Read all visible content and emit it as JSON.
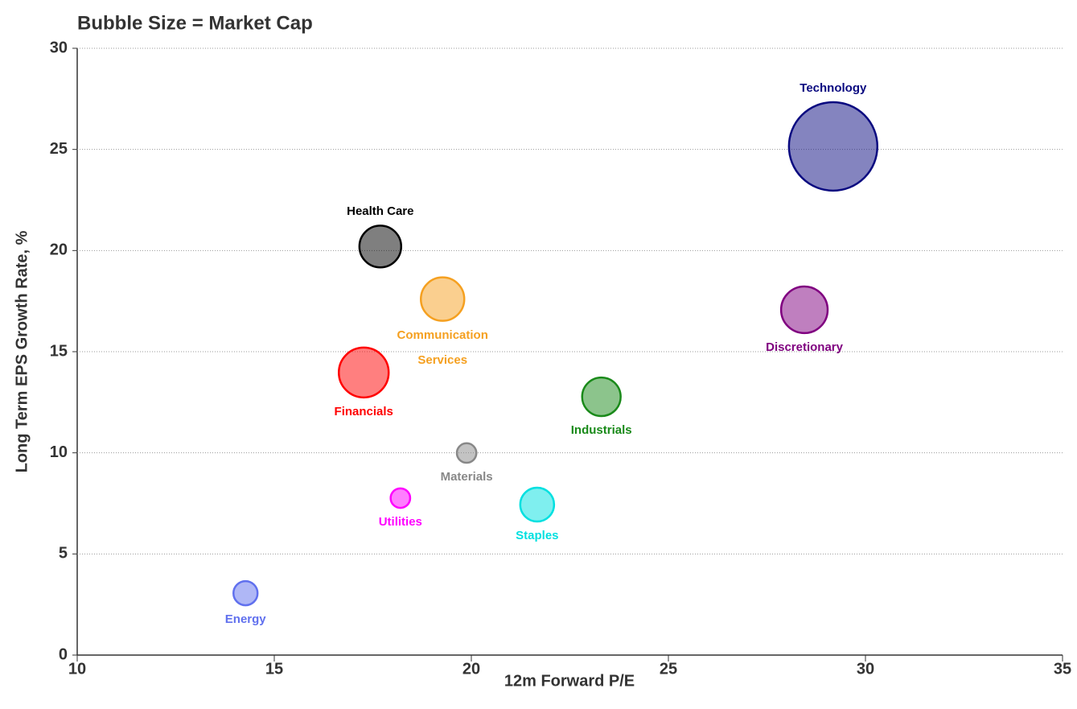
{
  "chart_data": {
    "type": "bubble",
    "title": "Bubble Size = Market Cap",
    "xlabel": "12m Forward P/E",
    "ylabel": "Long Term EPS Growth Rate, %",
    "xlim": [
      10,
      35
    ],
    "xticks": [
      10,
      15,
      20,
      25,
      30,
      35
    ],
    "ylim": [
      0,
      30
    ],
    "yticks": [
      0,
      5,
      10,
      15,
      20,
      25,
      30
    ],
    "grid": true,
    "series": [
      {
        "name": "Technology",
        "color": "#0a0a80",
        "x": [
          29.18
        ],
        "values": [
          25.15
        ],
        "sizes": [
          39
        ]
      },
      {
        "name": "Health Care",
        "color": "#000000",
        "x": [
          17.69
        ],
        "values": [
          20.2
        ],
        "sizes": [
          8.7
        ]
      },
      {
        "name": "Communication Services",
        "color": "#f5a020",
        "x": [
          19.27
        ],
        "values": [
          17.6
        ],
        "sizes": [
          9.4
        ]
      },
      {
        "name": "Financials",
        "color": "#ff0000",
        "x": [
          17.27
        ],
        "values": [
          13.97
        ],
        "sizes": [
          12.4
        ]
      },
      {
        "name": "Discretionary",
        "color": "#800080",
        "x": [
          28.45
        ],
        "values": [
          17.07
        ],
        "sizes": [
          10.8
        ]
      },
      {
        "name": "Industrials",
        "color": "#1a8a1a",
        "x": [
          23.3
        ],
        "values": [
          12.77
        ],
        "sizes": [
          7.4
        ]
      },
      {
        "name": "Materials",
        "color": "#888888",
        "x": [
          19.88
        ],
        "values": [
          9.99
        ],
        "sizes": [
          1.9
        ]
      },
      {
        "name": "Utilities",
        "color": "#ff00ff",
        "x": [
          18.2
        ],
        "values": [
          7.76
        ],
        "sizes": [
          1.9
        ]
      },
      {
        "name": "Staples",
        "color": "#00e0e0",
        "x": [
          21.67
        ],
        "values": [
          7.44
        ],
        "sizes": [
          5.7
        ]
      },
      {
        "name": "Energy",
        "color": "#6070ee",
        "x": [
          14.27
        ],
        "values": [
          3.06
        ],
        "sizes": [
          2.9
        ]
      }
    ]
  }
}
